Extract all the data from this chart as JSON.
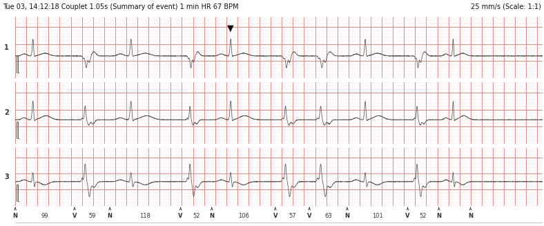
{
  "title_left": "Tue 03, 14:12:18 Couplet 1.05s (Summary of event) 1 min HR 67 BPM",
  "title_right": "25 mm/s (Scale: 1:1)",
  "background_color": "#ffffff",
  "grid_major_color": "#e88888",
  "grid_minor_color": "#f5cccc",
  "ecg_color": "#555555",
  "lead_labels": [
    "1",
    "2",
    "3"
  ],
  "bottom_labels": [
    "N",
    "99",
    "V",
    "59",
    "N",
    "118",
    "V",
    "52",
    "N",
    "106",
    "V",
    "57",
    "V",
    "63",
    "N",
    "101",
    "V",
    "52",
    "N"
  ],
  "figsize": [
    7.88,
    3.27
  ],
  "dpi": 100
}
